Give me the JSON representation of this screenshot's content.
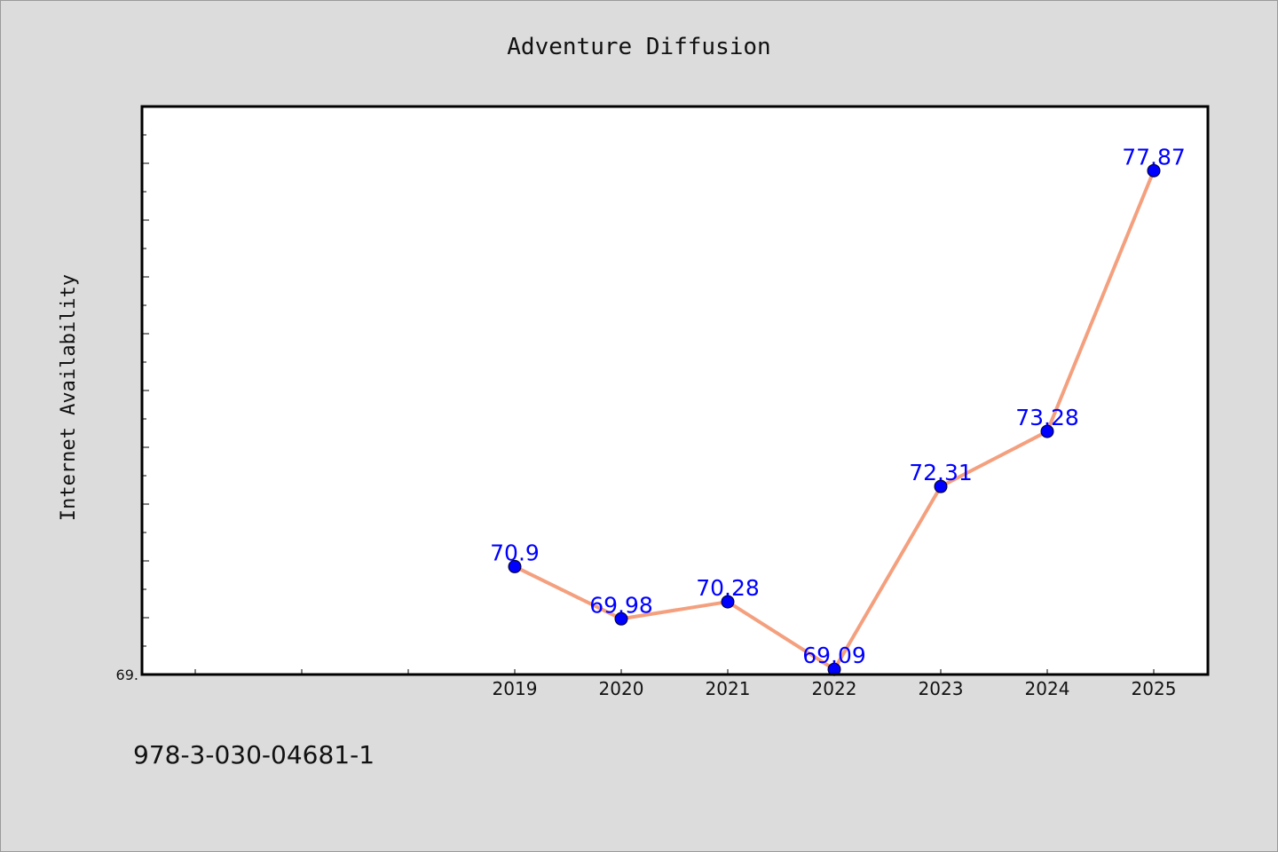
{
  "chart_data": {
    "type": "line",
    "title": "Adventure Diffusion",
    "xlabel": "",
    "ylabel": "Internet Availability",
    "x": [
      "2019",
      "2020",
      "2021",
      "2022",
      "2023",
      "2024",
      "2025"
    ],
    "series": [
      {
        "values": [
          70.9,
          69.98,
          70.28,
          69.09,
          72.31,
          73.28,
          77.87
        ],
        "labels": [
          "70.9",
          "69.98",
          "70.28",
          "69.09",
          "72.31",
          "73.28",
          "77.87"
        ]
      }
    ],
    "ylim": [
      69.0,
      79.0
    ],
    "y_tick_labels": [
      "69."
    ],
    "grid": false,
    "legend": "none",
    "colors": {
      "line": "#f4a07e",
      "marker": "#0000ff",
      "data_label": "#0000ff",
      "plot_background": "#ffffff",
      "figure_background": "#dcdcdc"
    }
  },
  "footer": {
    "code": "978-3-030-04681-1"
  }
}
